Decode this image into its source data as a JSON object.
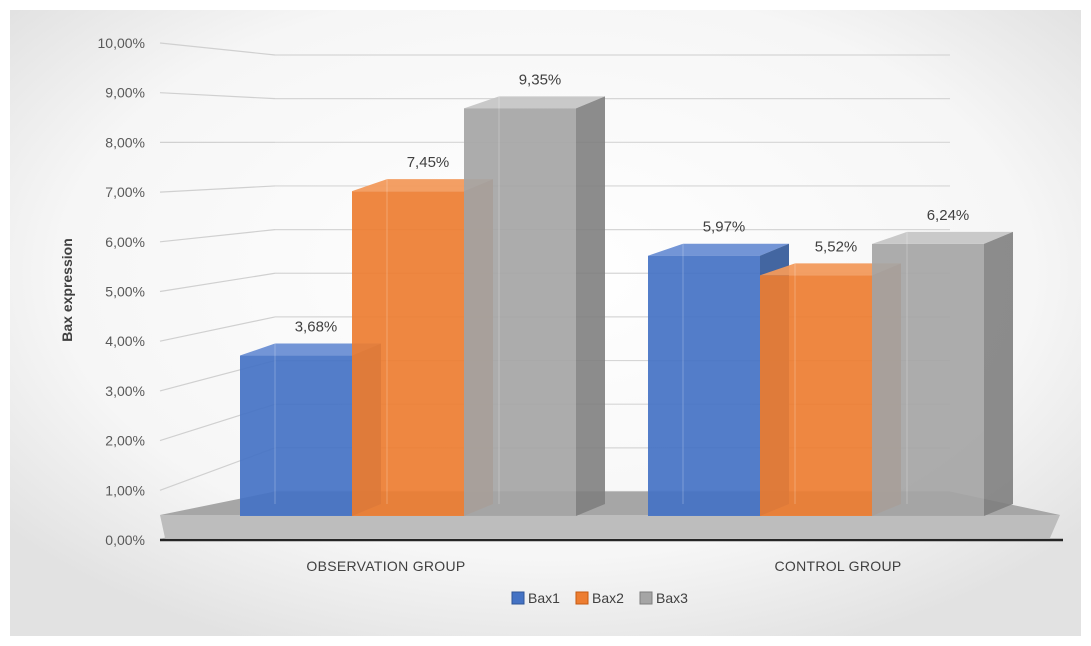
{
  "chart_data": {
    "type": "bar",
    "title": "",
    "xlabel": "",
    "ylabel": "Bax expression",
    "ylim": [
      0,
      10
    ],
    "y_ticks": [
      "0,00%",
      "1,00%",
      "2,00%",
      "3,00%",
      "4,00%",
      "5,00%",
      "6,00%",
      "7,00%",
      "8,00%",
      "9,00%",
      "10,00%"
    ],
    "categories": [
      "OBSERVATION GROUP",
      "CONTROL GROUP"
    ],
    "series": [
      {
        "name": "Bax1",
        "values": [
          3.68,
          5.97
        ],
        "labels": [
          "3,68%",
          "5,97%"
        ],
        "color": "#4472C4"
      },
      {
        "name": "Bax2",
        "values": [
          7.45,
          5.52
        ],
        "labels": [
          "7,45%",
          "5,52%"
        ],
        "color": "#ED7D31"
      },
      {
        "name": "Bax3",
        "values": [
          9.35,
          6.24
        ],
        "labels": [
          "9,35%",
          "6,24%"
        ],
        "color": "#A5A5A5"
      }
    ],
    "grid": true,
    "legend_position": "bottom",
    "style": "3d-clustered-column"
  }
}
